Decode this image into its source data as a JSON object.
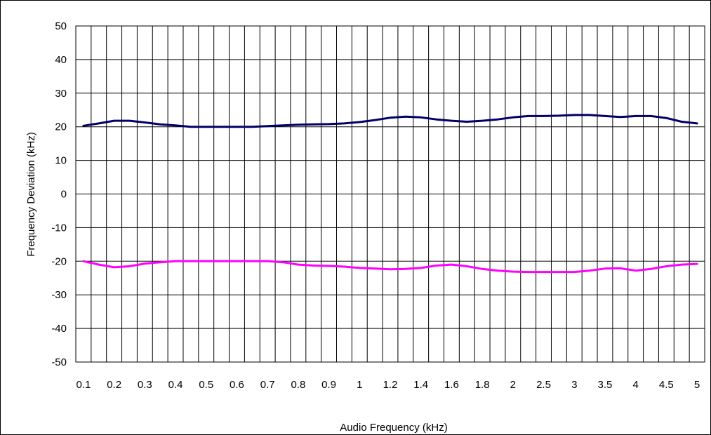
{
  "chart_data": {
    "type": "line",
    "title": "",
    "xlabel": "Audio Frequency (kHz)",
    "ylabel": "Frequency Deviation (kHz)",
    "ylim": [
      -50,
      50
    ],
    "yticks": [
      50,
      40,
      30,
      20,
      10,
      0,
      -10,
      -20,
      -30,
      -40,
      -50
    ],
    "x_tick_labels": [
      "0.1",
      "0.2",
      "0.3",
      "0.4",
      "0.5",
      "0.6",
      "0.7",
      "0.8",
      "0.9",
      "1",
      "1.2",
      "1.4",
      "1.6",
      "1.8",
      "2",
      "2.5",
      "3",
      "3.5",
      "4",
      "4.5",
      "5"
    ],
    "x_category_count": 41,
    "grid": true,
    "legend": "none",
    "series": [
      {
        "color": "#000066",
        "values": [
          20.3,
          21.0,
          21.8,
          21.8,
          21.3,
          20.7,
          20.4,
          20.0,
          20.0,
          20.0,
          20.0,
          20.0,
          20.2,
          20.4,
          20.6,
          20.7,
          20.8,
          21.0,
          21.4,
          22.0,
          22.7,
          23.0,
          22.8,
          22.2,
          21.8,
          21.5,
          21.8,
          22.2,
          22.8,
          23.2,
          23.2,
          23.3,
          23.5,
          23.5,
          23.2,
          22.9,
          23.2,
          23.2,
          22.6,
          21.5,
          21.0
        ]
      },
      {
        "color": "#ff00ff",
        "values": [
          -20.0,
          -21.0,
          -21.8,
          -21.5,
          -20.7,
          -20.3,
          -20.0,
          -20.0,
          -20.0,
          -20.0,
          -20.0,
          -20.0,
          -20.0,
          -20.3,
          -21.0,
          -21.3,
          -21.4,
          -21.6,
          -22.0,
          -22.2,
          -22.4,
          -22.3,
          -22.0,
          -21.3,
          -21.0,
          -21.5,
          -22.3,
          -22.8,
          -23.1,
          -23.2,
          -23.2,
          -23.2,
          -23.2,
          -22.8,
          -22.2,
          -22.1,
          -22.8,
          -22.3,
          -21.5,
          -21.0,
          -20.8
        ]
      }
    ]
  }
}
